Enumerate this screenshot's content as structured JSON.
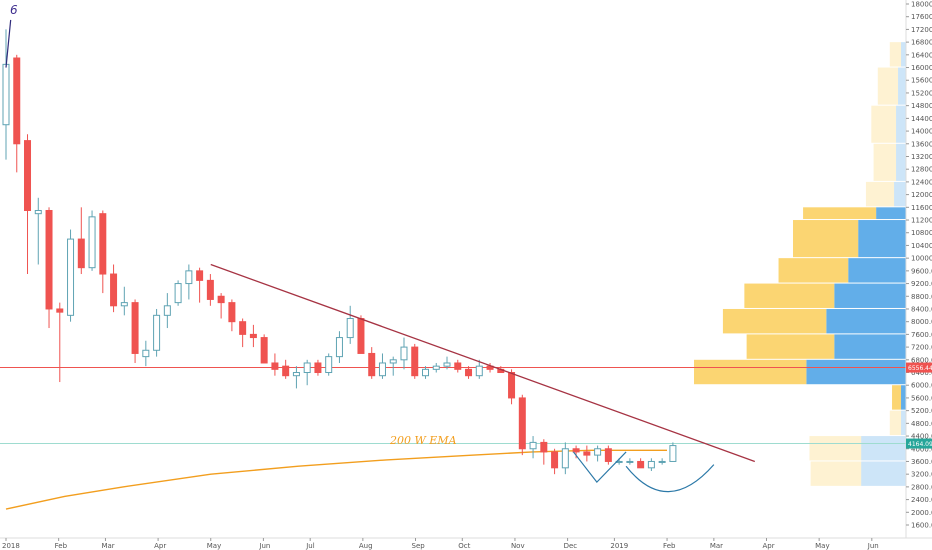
{
  "chart_data": {
    "type": "candlestick",
    "title": "",
    "xlabel": "",
    "ylabel": "",
    "ylim": [
      1600,
      18000
    ],
    "y_ticks": [
      "18000.00",
      "17600.00",
      "17200.00",
      "16800.00",
      "16400.00",
      "16000.00",
      "15600.00",
      "15200.00",
      "14800.00",
      "14400.00",
      "14000.00",
      "13600.00",
      "13200.00",
      "12800.00",
      "12400.00",
      "12000.00",
      "11600.00",
      "11200.00",
      "10800.00",
      "10400.00",
      "10000.00",
      "9600.00",
      "9200.00",
      "8800.00",
      "8400.00",
      "8000.00",
      "7600.00",
      "7200.00",
      "6800.00",
      "6400.00",
      "6000.00",
      "5600.00",
      "5200.00",
      "4800.00",
      "4400.00",
      "4000.00",
      "3600.00",
      "3200.00",
      "2800.00",
      "2400.00",
      "2000.00",
      "1600.00"
    ],
    "x_ticks": [
      "2018",
      "Feb",
      "Mar",
      "Apr",
      "May",
      "Jun",
      "Jul",
      "Aug",
      "Sep",
      "Oct",
      "Nov",
      "Dec",
      "2019",
      "Feb",
      "Mar",
      "Apr",
      "May",
      "Jun"
    ],
    "x_tick_weeks": [
      0,
      9,
      17,
      26,
      35,
      44,
      52,
      61,
      70,
      78,
      87,
      96,
      104,
      113,
      121,
      130,
      139,
      148
    ],
    "candles": [
      {
        "o": 14200,
        "h": 17200,
        "l": 13100,
        "c": 16100
      },
      {
        "o": 16300,
        "h": 16400,
        "l": 12700,
        "c": 13600
      },
      {
        "o": 13700,
        "h": 13900,
        "l": 9500,
        "c": 11500
      },
      {
        "o": 11400,
        "h": 11900,
        "l": 9800,
        "c": 11500
      },
      {
        "o": 11500,
        "h": 11600,
        "l": 7800,
        "c": 8400
      },
      {
        "o": 8400,
        "h": 8600,
        "l": 6100,
        "c": 8300
      },
      {
        "o": 8200,
        "h": 10900,
        "l": 8000,
        "c": 10600
      },
      {
        "o": 10600,
        "h": 11600,
        "l": 9500,
        "c": 9700
      },
      {
        "o": 9700,
        "h": 11500,
        "l": 9600,
        "c": 11300
      },
      {
        "o": 11400,
        "h": 11500,
        "l": 8900,
        "c": 9500
      },
      {
        "o": 9500,
        "h": 9800,
        "l": 8300,
        "c": 8500
      },
      {
        "o": 8500,
        "h": 9100,
        "l": 8200,
        "c": 8600
      },
      {
        "o": 8600,
        "h": 8700,
        "l": 6700,
        "c": 7000
      },
      {
        "o": 6900,
        "h": 7400,
        "l": 6600,
        "c": 7100
      },
      {
        "o": 7100,
        "h": 8400,
        "l": 6900,
        "c": 8200
      },
      {
        "o": 8200,
        "h": 8900,
        "l": 7800,
        "c": 8500
      },
      {
        "o": 8600,
        "h": 9300,
        "l": 8500,
        "c": 9200
      },
      {
        "o": 9200,
        "h": 9800,
        "l": 8700,
        "c": 9600
      },
      {
        "o": 9600,
        "h": 9700,
        "l": 8600,
        "c": 9300
      },
      {
        "o": 9300,
        "h": 9500,
        "l": 8500,
        "c": 8700
      },
      {
        "o": 8800,
        "h": 8900,
        "l": 8100,
        "c": 8600
      },
      {
        "o": 8600,
        "h": 8700,
        "l": 7700,
        "c": 8000
      },
      {
        "o": 8000,
        "h": 8100,
        "l": 7200,
        "c": 7600
      },
      {
        "o": 7600,
        "h": 7900,
        "l": 7200,
        "c": 7500
      },
      {
        "o": 7500,
        "h": 7600,
        "l": 6700,
        "c": 6700
      },
      {
        "o": 6700,
        "h": 7000,
        "l": 6300,
        "c": 6500
      },
      {
        "o": 6600,
        "h": 6800,
        "l": 6200,
        "c": 6300
      },
      {
        "o": 6300,
        "h": 6600,
        "l": 5900,
        "c": 6400
      },
      {
        "o": 6400,
        "h": 6800,
        "l": 6000,
        "c": 6700
      },
      {
        "o": 6700,
        "h": 6800,
        "l": 6300,
        "c": 6400
      },
      {
        "o": 6400,
        "h": 7000,
        "l": 6300,
        "c": 6900
      },
      {
        "o": 6900,
        "h": 7700,
        "l": 6700,
        "c": 7500
      },
      {
        "o": 7500,
        "h": 8500,
        "l": 7300,
        "c": 8100
      },
      {
        "o": 8100,
        "h": 8200,
        "l": 7000,
        "c": 7000
      },
      {
        "o": 7000,
        "h": 7200,
        "l": 6200,
        "c": 6300
      },
      {
        "o": 6300,
        "h": 7000,
        "l": 6200,
        "c": 6700
      },
      {
        "o": 6700,
        "h": 6900,
        "l": 6300,
        "c": 6800
      },
      {
        "o": 6800,
        "h": 7500,
        "l": 6500,
        "c": 7200
      },
      {
        "o": 7200,
        "h": 7300,
        "l": 6200,
        "c": 6300
      },
      {
        "o": 6300,
        "h": 6600,
        "l": 6200,
        "c": 6500
      },
      {
        "o": 6500,
        "h": 6700,
        "l": 6400,
        "c": 6600
      },
      {
        "o": 6600,
        "h": 6900,
        "l": 6500,
        "c": 6700
      },
      {
        "o": 6700,
        "h": 6800,
        "l": 6400,
        "c": 6500
      },
      {
        "o": 6500,
        "h": 6600,
        "l": 6200,
        "c": 6300
      },
      {
        "o": 6300,
        "h": 6800,
        "l": 6200,
        "c": 6600
      },
      {
        "o": 6600,
        "h": 6700,
        "l": 6400,
        "c": 6500
      },
      {
        "o": 6500,
        "h": 6600,
        "l": 6400,
        "c": 6400
      },
      {
        "o": 6400,
        "h": 6500,
        "l": 5400,
        "c": 5600
      },
      {
        "o": 5600,
        "h": 5700,
        "l": 3800,
        "c": 4000
      },
      {
        "o": 4000,
        "h": 4400,
        "l": 3700,
        "c": 4200
      },
      {
        "o": 4200,
        "h": 4300,
        "l": 3500,
        "c": 3900
      },
      {
        "o": 3900,
        "h": 4000,
        "l": 3200,
        "c": 3400
      },
      {
        "o": 3400,
        "h": 4200,
        "l": 3200,
        "c": 4000
      },
      {
        "o": 4000,
        "h": 4100,
        "l": 3700,
        "c": 3900
      },
      {
        "o": 3900,
        "h": 4100,
        "l": 3600,
        "c": 3800
      },
      {
        "o": 3800,
        "h": 4100,
        "l": 3600,
        "c": 4000
      },
      {
        "o": 4000,
        "h": 4100,
        "l": 3500,
        "c": 3600
      },
      {
        "o": 3600,
        "h": 3700,
        "l": 3500,
        "c": 3600
      },
      {
        "o": 3600,
        "h": 3700,
        "l": 3500,
        "c": 3600
      },
      {
        "o": 3600,
        "h": 3700,
        "l": 3400,
        "c": 3400
      },
      {
        "o": 3400,
        "h": 3700,
        "l": 3300,
        "c": 3600
      },
      {
        "o": 3600,
        "h": 3700,
        "l": 3500,
        "c": 3600
      },
      {
        "o": 3600,
        "h": 4200,
        "l": 3600,
        "c": 4100
      }
    ],
    "candle_first_week": 0,
    "candle_last_week": 114,
    "ema": {
      "name": "200 W EMA",
      "points": [
        [
          0,
          2100
        ],
        [
          10,
          2500
        ],
        [
          20,
          2800
        ],
        [
          35,
          3200
        ],
        [
          50,
          3450
        ],
        [
          65,
          3650
        ],
        [
          80,
          3800
        ],
        [
          90,
          3900
        ],
        [
          100,
          3950
        ],
        [
          113,
          3950
        ]
      ]
    },
    "trendline": {
      "from": [
        35,
        9800
      ],
      "to": [
        128,
        3600
      ]
    },
    "horizontal_line": {
      "value": 6556,
      "label": "6556.44"
    },
    "price_line": {
      "value": 4164,
      "label": "4164.09"
    },
    "patterns": [
      {
        "shape": "v",
        "points": [
          [
            97,
            3900
          ],
          [
            101,
            2950
          ],
          [
            106,
            3900
          ]
        ]
      },
      {
        "shape": "arc",
        "points": [
          [
            106,
            3450
          ],
          [
            113,
            2650
          ],
          [
            121,
            3500
          ]
        ]
      }
    ],
    "volume_profile": [
      {
        "lo": 16000,
        "hi": 16800,
        "left": 0.1,
        "right": 0.05
      },
      {
        "lo": 14800,
        "hi": 16000,
        "left": 0.18,
        "right": 0.08
      },
      {
        "lo": 13600,
        "hi": 14800,
        "left": 0.22,
        "right": 0.1
      },
      {
        "lo": 12400,
        "hi": 13600,
        "left": 0.2,
        "right": 0.1
      },
      {
        "lo": 11600,
        "hi": 12400,
        "left": 0.25,
        "right": 0.12
      },
      {
        "lo": 11200,
        "hi": 11600,
        "left": 0.65,
        "right": 0.3
      },
      {
        "lo": 10000,
        "hi": 11200,
        "left": 0.58,
        "right": 0.48
      },
      {
        "lo": 9200,
        "hi": 10000,
        "left": 0.62,
        "right": 0.58
      },
      {
        "lo": 8400,
        "hi": 9200,
        "left": 0.8,
        "right": 0.72
      },
      {
        "lo": 7600,
        "hi": 8400,
        "left": 0.92,
        "right": 0.8
      },
      {
        "lo": 6800,
        "hi": 7600,
        "left": 0.78,
        "right": 0.72
      },
      {
        "lo": 6000,
        "hi": 6800,
        "left": 1.0,
        "right": 1.0
      },
      {
        "lo": 5200,
        "hi": 6000,
        "left": 0.08,
        "right": 0.05
      },
      {
        "lo": 4400,
        "hi": 5200,
        "left": 0.1,
        "right": 0.05
      },
      {
        "lo": 3600,
        "hi": 4400,
        "left": 0.46,
        "right": 0.45
      },
      {
        "lo": 2800,
        "hi": 3600,
        "left": 0.45,
        "right": 0.45
      }
    ],
    "corner_label": "6",
    "colors": {
      "up_body": "#ffffff",
      "up_border": "#5fa3b3",
      "down": "#ef5350",
      "ema": "#f29e1e",
      "trendline": "#a63343",
      "hline": "#ef5350",
      "pattern": "#2c79a8",
      "vp_left": "#fbd36a",
      "vp_right": "#5aaae8",
      "price_line": "#9edcd0"
    }
  }
}
